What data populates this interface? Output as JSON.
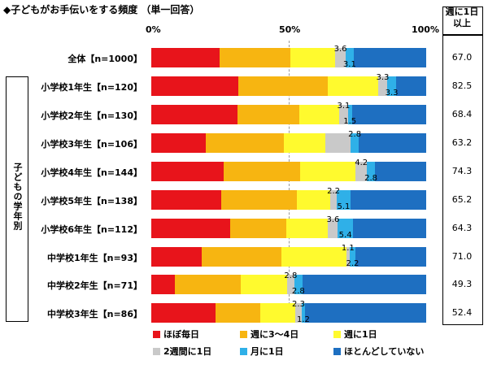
{
  "title": "◆子どもがお手伝いをする頻度 （単一回答）",
  "axis_ticks": [
    "0%",
    "50%",
    "100%"
  ],
  "side_label": "子どもの学年別",
  "value_header": [
    "週に1日",
    "以上"
  ],
  "chart_data": {
    "type": "bar",
    "orientation": "horizontal",
    "stacked": true,
    "xlim": [
      0,
      100
    ],
    "categories": [
      "全体【n=1000】",
      "小学校1年生【n=120】",
      "小学校2年生【n=130】",
      "小学校3年生【n=106】",
      "小学校4年生【n=144】",
      "小学校5年生【n=138】",
      "小学校6年生【n=112】",
      "中学校1年生【n=93】",
      "中学校2年生【n=71】",
      "中学校3年生【n=86】"
    ],
    "series": [
      {
        "name": "ほぼ毎日",
        "color": "#e8141b",
        "values": [
          24.8,
          31.7,
          31.5,
          19.8,
          26.4,
          25.4,
          28.6,
          18.3,
          8.5,
          23.3
        ]
      },
      {
        "name": "週に3～4日",
        "color": "#f7b511",
        "values": [
          25.7,
          32.5,
          22.3,
          28.3,
          27.8,
          27.5,
          20.5,
          29.0,
          23.9,
          16.3
        ]
      },
      {
        "name": "週に1日",
        "color": "#fffa2e",
        "values": [
          16.5,
          18.3,
          14.6,
          15.1,
          20.1,
          12.3,
          15.2,
          23.7,
          16.9,
          12.8
        ]
      },
      {
        "name": "2週間に1日",
        "color": "#c9c9c9",
        "values": [
          3.6,
          3.3,
          3.1,
          9.4,
          4.2,
          2.2,
          3.6,
          1.1,
          2.8,
          2.3
        ]
      },
      {
        "name": "月に1日",
        "color": "#2fb0e8",
        "values": [
          3.1,
          3.3,
          1.5,
          2.8,
          2.8,
          5.1,
          5.4,
          2.2,
          2.8,
          1.2
        ]
      },
      {
        "name": "ほとんどしていない",
        "color": "#1e6fc1",
        "values": [
          26.3,
          10.8,
          26.9,
          24.5,
          18.8,
          27.5,
          26.8,
          25.8,
          45.1,
          44.2
        ]
      }
    ],
    "summary_values": [
      "67.0",
      "82.5",
      "68.4",
      "63.2",
      "74.3",
      "65.2",
      "64.3",
      "71.0",
      "49.3",
      "52.4"
    ]
  }
}
